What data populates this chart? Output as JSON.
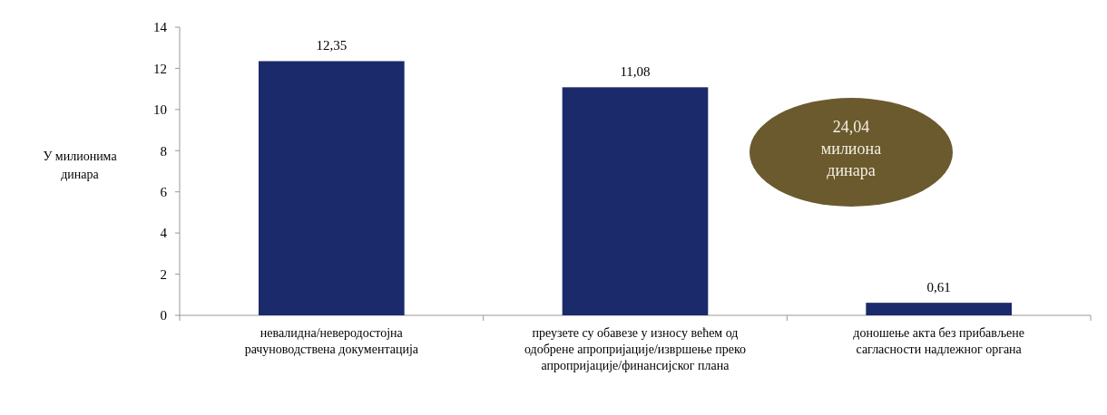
{
  "chart_data": {
    "type": "bar",
    "ylabel": "У милионима динара",
    "categories": [
      "невалидна/неверодостојна рачуноводствена документација",
      "преузете су обавезе у износу већем од одобрене апропријације/извршење преко апропријације/финансијског плана",
      "доношење акта без прибављене сагласности надлежног органа"
    ],
    "values": [
      12.35,
      11.08,
      0.61
    ],
    "value_labels": [
      "12,35",
      "11,08",
      "0,61"
    ],
    "color": "#1b2a6b",
    "ylim": [
      0,
      14
    ],
    "yticks": [
      0,
      2,
      4,
      6,
      8,
      10,
      12,
      14
    ],
    "annotations": [
      "24,04 милиона динара"
    ]
  }
}
